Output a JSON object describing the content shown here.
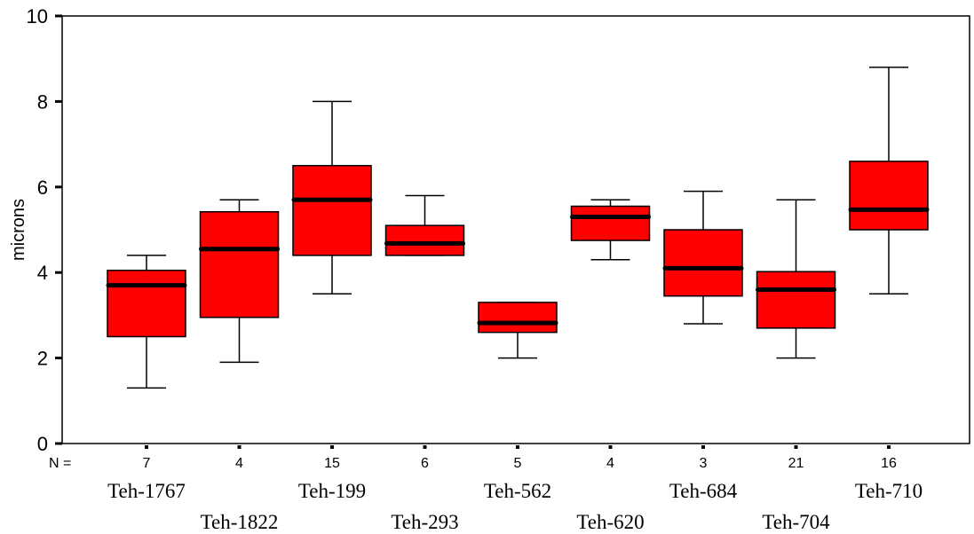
{
  "chart_data": {
    "type": "box",
    "ylabel": "microns",
    "ylim": [
      0,
      10
    ],
    "yticks": [
      "0",
      "2",
      "4",
      "6",
      "8",
      "10"
    ],
    "n_prefix": "N =",
    "box_color": "#ff0000",
    "categories": [
      "Teh-1767",
      "Teh-1822",
      "Teh-199",
      "Teh-293",
      "Teh-562",
      "Teh-620",
      "Teh-684",
      "Teh-704",
      "Teh-710"
    ],
    "n": [
      "7",
      "4",
      "15",
      "6",
      "5",
      "4",
      "3",
      "21",
      "16"
    ],
    "boxes": [
      {
        "min": 1.3,
        "q1": 2.5,
        "median": 3.7,
        "q3": 4.05,
        "max": 4.4
      },
      {
        "min": 1.9,
        "q1": 2.95,
        "median": 4.55,
        "q3": 5.42,
        "max": 5.7
      },
      {
        "min": 3.5,
        "q1": 4.4,
        "median": 5.7,
        "q3": 6.5,
        "max": 8.0
      },
      {
        "min": 4.4,
        "q1": 4.4,
        "median": 4.68,
        "q3": 5.1,
        "max": 5.8
      },
      {
        "min": 2.0,
        "q1": 2.6,
        "median": 2.82,
        "q3": 3.3,
        "max": 3.3
      },
      {
        "min": 4.3,
        "q1": 4.75,
        "median": 5.3,
        "q3": 5.55,
        "max": 5.7
      },
      {
        "min": 2.8,
        "q1": 3.45,
        "median": 4.1,
        "q3": 5.0,
        "max": 5.9
      },
      {
        "min": 2.0,
        "q1": 2.7,
        "median": 3.6,
        "q3": 4.02,
        "max": 5.7
      },
      {
        "min": 3.5,
        "q1": 5.0,
        "median": 5.47,
        "q3": 6.6,
        "max": 8.8
      }
    ]
  }
}
